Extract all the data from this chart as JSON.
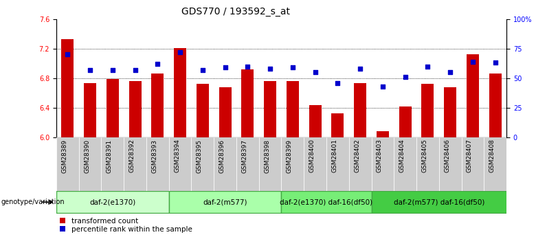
{
  "title": "GDS770 / 193592_s_at",
  "samples": [
    "GSM28389",
    "GSM28390",
    "GSM28391",
    "GSM28392",
    "GSM28393",
    "GSM28394",
    "GSM28395",
    "GSM28396",
    "GSM28397",
    "GSM28398",
    "GSM28399",
    "GSM28400",
    "GSM28401",
    "GSM28402",
    "GSM28403",
    "GSM28404",
    "GSM28405",
    "GSM28406",
    "GSM28407",
    "GSM28408"
  ],
  "bar_values": [
    7.33,
    6.73,
    6.79,
    6.76,
    6.86,
    7.21,
    6.72,
    6.68,
    6.92,
    6.76,
    6.76,
    6.44,
    6.33,
    6.73,
    6.08,
    6.42,
    6.72,
    6.68,
    7.12,
    6.86
  ],
  "dot_values": [
    70,
    57,
    57,
    57,
    62,
    72,
    57,
    59,
    60,
    58,
    59,
    55,
    46,
    58,
    43,
    51,
    60,
    55,
    64,
    63
  ],
  "ylim_left": [
    6.0,
    7.6
  ],
  "ylim_right": [
    0,
    100
  ],
  "yticks_left": [
    6.0,
    6.4,
    6.8,
    7.2,
    7.6
  ],
  "yticks_right": [
    0,
    25,
    50,
    75,
    100
  ],
  "ytick_labels_right": [
    "0",
    "25",
    "50",
    "75",
    "100%"
  ],
  "bar_color": "#cc0000",
  "dot_color": "#0000cc",
  "groups": [
    {
      "label": "daf-2(e1370)",
      "start": 0,
      "end": 5,
      "color": "#ccffcc"
    },
    {
      "label": "daf-2(m577)",
      "start": 5,
      "end": 10,
      "color": "#aaffaa"
    },
    {
      "label": "daf-2(e1370) daf-16(df50)",
      "start": 10,
      "end": 14,
      "color": "#77ee77"
    },
    {
      "label": "daf-2(m577) daf-16(df50)",
      "start": 14,
      "end": 20,
      "color": "#44cc44"
    }
  ],
  "group_row_label": "genotype/variation",
  "legend_bar_label": "transformed count",
  "legend_dot_label": "percentile rank within the sample",
  "bar_width": 0.55,
  "title_fontsize": 10,
  "tick_fontsize": 7,
  "xtick_fontsize": 6.5,
  "group_fontsize": 7.5,
  "legend_fontsize": 7.5
}
